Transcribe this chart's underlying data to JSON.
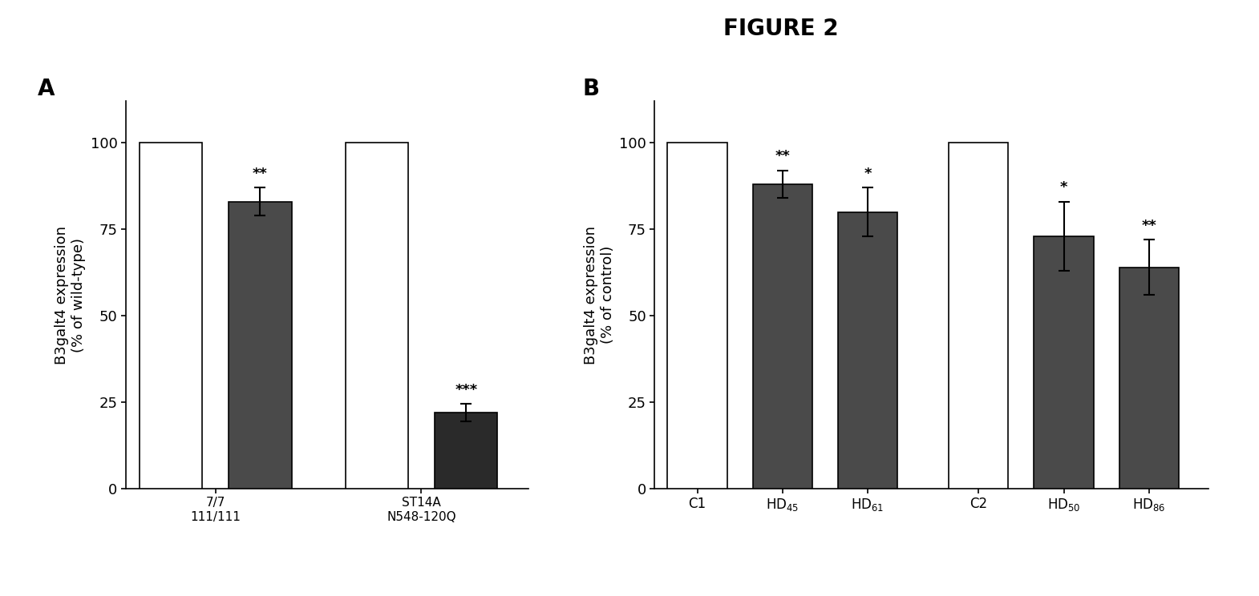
{
  "figure_title": "FIGURE 2",
  "panel_A": {
    "label": "A",
    "bars": [
      {
        "x": 0,
        "height": 100,
        "color": "white",
        "edgecolor": "black",
        "sig": null,
        "err": 0
      },
      {
        "x": 1,
        "height": 83,
        "color": "#4a4a4a",
        "edgecolor": "black",
        "sig": "**",
        "err": 4
      },
      {
        "x": 2.3,
        "height": 100,
        "color": "white",
        "edgecolor": "black",
        "sig": null,
        "err": 0
      },
      {
        "x": 3.3,
        "height": 22,
        "color": "#2a2a2a",
        "edgecolor": "black",
        "sig": "***",
        "err": 2.5
      }
    ],
    "xtick_positions": [
      0.5,
      2.8
    ],
    "xtick_labels": [
      "7/7\n111/111",
      "ST14A\nN548-120Q"
    ],
    "ylabel": "B3galt4 expression\n(% of wild-type)",
    "ylim": [
      0,
      112
    ],
    "yticks": [
      0,
      25,
      50,
      75,
      100
    ],
    "xlim": [
      -0.5,
      4.0
    ]
  },
  "panel_B": {
    "label": "B",
    "bars": [
      {
        "x": 0,
        "height": 100,
        "color": "white",
        "edgecolor": "black",
        "sig": null,
        "err": 0
      },
      {
        "x": 1,
        "height": 88,
        "color": "#4a4a4a",
        "edgecolor": "black",
        "sig": "**",
        "err": 4
      },
      {
        "x": 2,
        "height": 80,
        "color": "#4a4a4a",
        "edgecolor": "black",
        "sig": "*",
        "err": 7
      },
      {
        "x": 3.3,
        "height": 100,
        "color": "white",
        "edgecolor": "black",
        "sig": null,
        "err": 0
      },
      {
        "x": 4.3,
        "height": 73,
        "color": "#4a4a4a",
        "edgecolor": "black",
        "sig": "*",
        "err": 10
      },
      {
        "x": 5.3,
        "height": 64,
        "color": "#4a4a4a",
        "edgecolor": "black",
        "sig": "**",
        "err": 8
      }
    ],
    "xtick_positions": [
      0,
      1,
      2,
      3.3,
      4.3,
      5.3
    ],
    "xtick_labels": [
      "C1",
      "HD$_{45}$",
      "HD$_{61}$",
      "C2",
      "HD$_{50}$",
      "HD$_{86}$"
    ],
    "ylabel": "B3galt4 expression\n(% of control)",
    "ylim": [
      0,
      112
    ],
    "yticks": [
      0,
      25,
      50,
      75,
      100
    ],
    "xlim": [
      -0.5,
      6.0
    ]
  },
  "bar_width": 0.7,
  "background_color": "#ffffff",
  "sig_fontsize": 13,
  "label_fontsize": 20,
  "tick_fontsize": 13,
  "axis_label_fontsize": 13
}
